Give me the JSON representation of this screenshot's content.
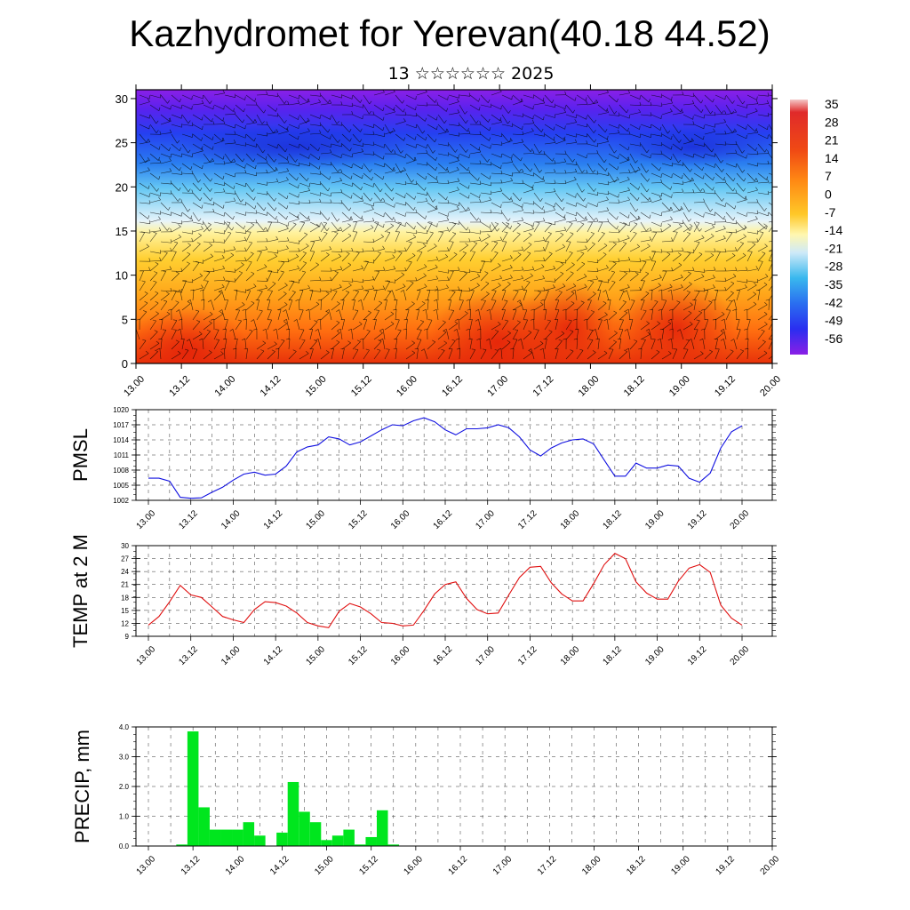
{
  "title": "Kazhydromet for Yerevan(40.18 44.52)",
  "subtitle": "13 ☆☆☆☆☆☆ 2025",
  "time_labels": [
    "13.00",
    "13.12",
    "14.00",
    "14.12",
    "15.00",
    "15.12",
    "16.00",
    "16.12",
    "17.00",
    "17.12",
    "18.00",
    "18.12",
    "19.00",
    "19.12",
    "20.00"
  ],
  "chart_data": [
    {
      "type": "heatmap",
      "name": "temperature-wind cross section",
      "x_ticks": [
        "13.00",
        "13.12",
        "14.00",
        "14.12",
        "15.00",
        "15.12",
        "16.00",
        "16.12",
        "17.00",
        "17.12",
        "18.00",
        "18.12",
        "19.00",
        "19.12",
        "20.00"
      ],
      "y_ticks": [
        0,
        5,
        10,
        15,
        20,
        25,
        30
      ],
      "ylim": [
        0,
        31
      ],
      "colorbar_labels": [
        "35",
        "28",
        "21",
        "14",
        "7",
        "0",
        "-7",
        "-14",
        "-21",
        "-28",
        "-35",
        "-42",
        "-49",
        "-56"
      ],
      "colorbar_range": [
        -63,
        42
      ],
      "wind_barbs": true
    },
    {
      "type": "line",
      "ylabel": "PMSL",
      "ylim": [
        1002,
        1020
      ],
      "y_ticks": [
        1002,
        1005,
        1008,
        1011,
        1014,
        1017,
        1020
      ],
      "color": "#1010e0",
      "x": [
        0,
        1,
        2,
        3,
        4,
        5,
        6,
        7,
        8,
        9,
        10,
        11,
        12,
        13,
        14,
        15,
        16,
        17,
        18,
        19,
        20,
        21,
        22,
        23,
        24,
        25,
        26,
        27,
        28,
        29,
        30,
        31,
        32,
        33,
        34,
        35,
        36,
        37,
        38,
        39,
        40,
        41,
        42,
        43,
        44,
        45,
        46,
        47,
        48,
        49,
        50,
        51,
        52,
        53,
        54,
        55,
        56
      ],
      "values": [
        1006.4,
        1006.4,
        1005.8,
        1002.6,
        1002.4,
        1002.5,
        1003.6,
        1004.6,
        1006.0,
        1007.2,
        1007.6,
        1007.0,
        1007.2,
        1008.8,
        1011.6,
        1012.6,
        1013.0,
        1014.6,
        1014.2,
        1013.0,
        1013.6,
        1014.8,
        1016.0,
        1017.0,
        1016.8,
        1017.8,
        1018.4,
        1017.6,
        1016.0,
        1015.0,
        1016.2,
        1016.2,
        1016.4,
        1017.0,
        1016.4,
        1014.6,
        1012.0,
        1010.8,
        1012.4,
        1013.4,
        1014.0,
        1014.2,
        1013.2,
        1010.0,
        1006.8,
        1006.8,
        1009.4,
        1008.4,
        1008.4,
        1009.0,
        1008.8,
        1006.4,
        1005.6,
        1007.4,
        1012.4,
        1015.6,
        1016.8
      ]
    },
    {
      "type": "line",
      "ylabel": "TEMP at 2 M",
      "ylim": [
        9,
        30
      ],
      "y_ticks": [
        9,
        12,
        15,
        18,
        21,
        24,
        27,
        30
      ],
      "color": "#e01010",
      "x": [
        0,
        1,
        2,
        3,
        4,
        5,
        6,
        7,
        8,
        9,
        10,
        11,
        12,
        13,
        14,
        15,
        16,
        17,
        18,
        19,
        20,
        21,
        22,
        23,
        24,
        25,
        26,
        27,
        28,
        29,
        30,
        31,
        32,
        33,
        34,
        35,
        36,
        37,
        38,
        39,
        40,
        41,
        42,
        43,
        44,
        45,
        46,
        47,
        48,
        49,
        50,
        51,
        52,
        53,
        54,
        55,
        56
      ],
      "values": [
        11.6,
        13.6,
        17.0,
        20.8,
        18.6,
        18.0,
        15.8,
        13.6,
        12.8,
        12.2,
        15.2,
        17.0,
        16.8,
        16.0,
        14.4,
        12.2,
        11.4,
        11.0,
        14.8,
        16.6,
        15.8,
        14.2,
        12.2,
        12.0,
        11.4,
        11.6,
        15.0,
        18.8,
        21.0,
        21.6,
        17.8,
        15.2,
        14.2,
        14.4,
        18.6,
        22.6,
        25.0,
        25.2,
        21.4,
        18.8,
        17.2,
        17.2,
        21.2,
        25.6,
        28.2,
        27.0,
        21.6,
        19.0,
        17.6,
        17.6,
        21.8,
        24.8,
        25.6,
        23.8,
        16.2,
        13.2,
        11.6
      ]
    },
    {
      "type": "bar",
      "ylabel": "PRECIP, mm",
      "ylim": [
        0,
        4
      ],
      "y_ticks": [
        "0.0",
        "1.0",
        "2.0",
        "3.0",
        "4.0"
      ],
      "color": "#00e61e",
      "x": [
        0,
        1,
        2,
        3,
        4,
        5,
        6,
        7,
        8,
        9,
        10,
        11,
        12,
        13,
        14,
        15,
        16,
        17,
        18,
        19,
        20,
        21,
        22,
        23,
        24,
        25,
        26,
        27,
        28,
        29,
        30,
        31,
        32,
        33,
        34,
        35,
        36,
        37,
        38,
        39,
        40,
        41,
        42,
        43,
        44,
        45,
        46,
        47,
        48,
        49,
        50,
        51,
        52,
        53,
        54,
        55,
        56
      ],
      "values": [
        0,
        0,
        0,
        0.05,
        3.85,
        1.3,
        0.55,
        0.55,
        0.55,
        0.8,
        0.35,
        0,
        0.45,
        2.15,
        1.15,
        0.8,
        0.2,
        0.35,
        0.55,
        0.05,
        0.3,
        1.2,
        0.05,
        0,
        0,
        0,
        0,
        0,
        0,
        0,
        0,
        0,
        0,
        0,
        0,
        0,
        0,
        0,
        0,
        0,
        0,
        0,
        0,
        0,
        0,
        0,
        0,
        0,
        0,
        0,
        0,
        0,
        0,
        0,
        0,
        0,
        0
      ]
    }
  ]
}
